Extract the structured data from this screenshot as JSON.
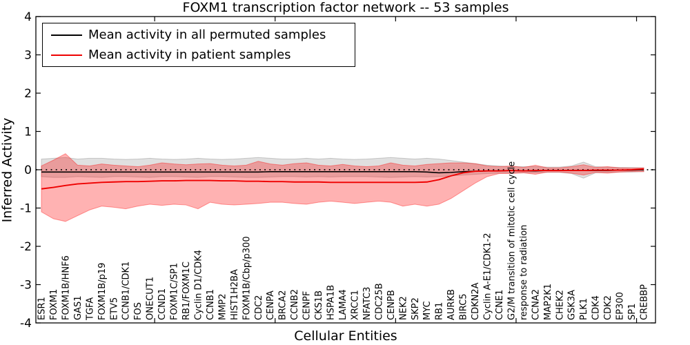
{
  "title": "FOXM1 transcription factor network -- 53 samples",
  "axes": {
    "x_label": "Cellular Entities",
    "y_label": "Inferred Activity",
    "y_tick_labels": [
      "4",
      "3",
      "2",
      "1",
      "0",
      "-1",
      "-2",
      "-3",
      "-4"
    ]
  },
  "legend": {
    "items": [
      {
        "label": "Mean activity in all permuted samples",
        "color": "#000000"
      },
      {
        "label": "Mean activity in patient samples",
        "color": "#ee0000"
      }
    ]
  },
  "colors": {
    "permuted_line": "#000000",
    "patient_line": "#ee0000",
    "permuted_band_fill": "rgba(0,0,0,0.12)",
    "permuted_band_edge": "rgba(0,0,0,0.18)",
    "patient_band_fill": "rgba(255,0,0,0.30)",
    "patient_band_edge": "rgba(255,0,0,0.38)",
    "zero_line": "#000000"
  },
  "chart_data": {
    "type": "line",
    "title": "FOXM1 transcription factor network -- 53 samples",
    "xlabel": "Cellular Entities",
    "ylabel": "Inferred Activity",
    "ylim": [
      -4,
      4
    ],
    "legend_position": "upper left",
    "zero_line": "dotted",
    "grid": false,
    "categories": [
      "ESR1",
      "FOXM1",
      "FOXM1B/HNF6",
      "GAS1",
      "TGFA",
      "FOXM1B/p19",
      "ETV5",
      "CCNB1/CDK1",
      "FOS",
      "ONECUT1",
      "CCND1",
      "FOXM1C/SP1",
      "RB1/FOXM1C",
      "Cyclin D1/CDK4",
      "CCNB1",
      "MMP2",
      "HIST1H2BA",
      "FOXM1B/Cbp/p300",
      "CDC2",
      "CENPA",
      "BRCA2",
      "CCNB2",
      "CENPF",
      "CKS1B",
      "HSPA1B",
      "LAMA4",
      "XRCC1",
      "NFATC3",
      "CDC25B",
      "CENPB",
      "NEK2",
      "SKP2",
      "MYC",
      "RB1",
      "AURKB",
      "BIRC5",
      "CDKN2A",
      "Cyclin A-E1/CDK1-2",
      "CCNE1",
      "G2/M transition of mitotic cell cycle",
      "response to radiation",
      "CCNA2",
      "MAP2K1",
      "CHEK2",
      "GSK3A",
      "PLK1",
      "CDK4",
      "CDK2",
      "EP300",
      "SP1",
      "CREBBP"
    ],
    "series": [
      {
        "name": "Mean activity in all permuted samples",
        "color": "#000000",
        "values": [
          -0.06,
          -0.06,
          -0.06,
          -0.06,
          -0.06,
          -0.06,
          -0.06,
          -0.06,
          -0.06,
          -0.06,
          -0.06,
          -0.06,
          -0.06,
          -0.06,
          -0.06,
          -0.06,
          -0.06,
          -0.06,
          -0.06,
          -0.05,
          -0.05,
          -0.05,
          -0.05,
          -0.05,
          -0.05,
          -0.05,
          -0.05,
          -0.05,
          -0.05,
          -0.05,
          -0.05,
          -0.05,
          -0.06,
          -0.08,
          -0.07,
          -0.05,
          -0.04,
          -0.03,
          -0.03,
          -0.02,
          -0.03,
          -0.03,
          -0.02,
          -0.02,
          -0.02,
          -0.02,
          -0.02,
          -0.02,
          -0.01,
          -0.01,
          0.0
        ]
      },
      {
        "name": "Mean activity in patient samples",
        "color": "#ee0000",
        "values": [
          -0.5,
          -0.46,
          -0.41,
          -0.37,
          -0.35,
          -0.33,
          -0.32,
          -0.31,
          -0.31,
          -0.3,
          -0.29,
          -0.29,
          -0.28,
          -0.28,
          -0.28,
          -0.29,
          -0.29,
          -0.3,
          -0.3,
          -0.31,
          -0.31,
          -0.32,
          -0.32,
          -0.32,
          -0.33,
          -0.33,
          -0.33,
          -0.33,
          -0.33,
          -0.33,
          -0.33,
          -0.33,
          -0.32,
          -0.26,
          -0.16,
          -0.08,
          -0.04,
          -0.03,
          -0.03,
          -0.02,
          -0.03,
          -0.02,
          -0.02,
          -0.02,
          -0.02,
          -0.02,
          -0.01,
          -0.01,
          -0.01,
          0.0,
          0.02
        ]
      }
    ],
    "bands": [
      {
        "name": "permuted-activity-range",
        "fill": "rgba(0,0,0,0.12)",
        "edge": "rgba(0,0,0,0.18)",
        "upper": [
          0.28,
          0.3,
          0.32,
          0.28,
          0.3,
          0.3,
          0.28,
          0.27,
          0.28,
          0.3,
          0.28,
          0.27,
          0.28,
          0.3,
          0.28,
          0.27,
          0.28,
          0.3,
          0.32,
          0.3,
          0.28,
          0.28,
          0.3,
          0.28,
          0.3,
          0.28,
          0.27,
          0.28,
          0.3,
          0.32,
          0.3,
          0.28,
          0.3,
          0.28,
          0.24,
          0.2,
          0.16,
          0.12,
          0.1,
          0.08,
          0.08,
          0.08,
          0.07,
          0.07,
          0.1,
          0.2,
          0.08,
          0.07,
          0.06,
          0.06,
          0.05
        ],
        "lower": [
          -0.18,
          -0.2,
          -0.2,
          -0.18,
          -0.19,
          -0.2,
          -0.18,
          -0.18,
          -0.19,
          -0.2,
          -0.18,
          -0.18,
          -0.19,
          -0.2,
          -0.18,
          -0.18,
          -0.19,
          -0.2,
          -0.2,
          -0.19,
          -0.18,
          -0.18,
          -0.19,
          -0.18,
          -0.19,
          -0.18,
          -0.18,
          -0.18,
          -0.19,
          -0.2,
          -0.19,
          -0.18,
          -0.19,
          -0.18,
          -0.16,
          -0.14,
          -0.12,
          -0.1,
          -0.09,
          -0.08,
          -0.08,
          -0.08,
          -0.07,
          -0.07,
          -0.1,
          -0.22,
          -0.08,
          -0.07,
          -0.06,
          -0.06,
          -0.05
        ]
      },
      {
        "name": "patient-activity-range",
        "fill": "rgba(255,0,0,0.30)",
        "edge": "rgba(255,0,0,0.38)",
        "upper": [
          0.1,
          0.25,
          0.42,
          0.12,
          0.1,
          0.15,
          0.12,
          0.1,
          0.08,
          0.12,
          0.18,
          0.15,
          0.13,
          0.15,
          0.16,
          0.12,
          0.1,
          0.12,
          0.22,
          0.15,
          0.12,
          0.16,
          0.18,
          0.12,
          0.1,
          0.14,
          0.1,
          0.08,
          0.1,
          0.18,
          0.12,
          0.1,
          0.14,
          0.16,
          0.18,
          0.18,
          0.16,
          0.1,
          0.08,
          0.1,
          0.06,
          0.12,
          0.05,
          0.05,
          0.08,
          0.13,
          0.06,
          0.08,
          0.05,
          0.04,
          0.05
        ],
        "lower": [
          -1.1,
          -1.28,
          -1.35,
          -1.2,
          -1.05,
          -0.95,
          -0.98,
          -1.02,
          -0.95,
          -0.9,
          -0.93,
          -0.9,
          -0.92,
          -1.02,
          -0.85,
          -0.9,
          -0.92,
          -0.9,
          -0.88,
          -0.85,
          -0.85,
          -0.88,
          -0.9,
          -0.85,
          -0.82,
          -0.85,
          -0.88,
          -0.85,
          -0.82,
          -0.85,
          -0.95,
          -0.9,
          -0.95,
          -0.9,
          -0.75,
          -0.55,
          -0.35,
          -0.18,
          -0.1,
          -0.1,
          -0.08,
          -0.12,
          -0.06,
          -0.06,
          -0.09,
          -0.14,
          -0.07,
          -0.09,
          -0.06,
          -0.05,
          -0.05
        ]
      }
    ]
  }
}
